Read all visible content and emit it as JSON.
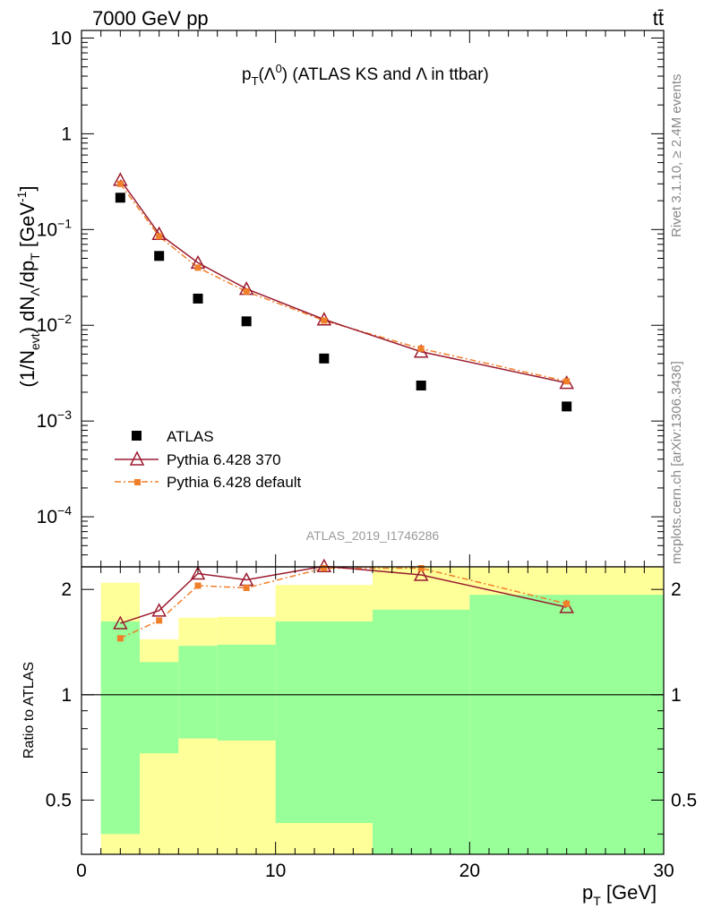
{
  "header": {
    "left": "7000 GeV pp",
    "right": "tt̄",
    "title": "p_T(Λ^0) (ATLAS KS and Λ in ttbar)",
    "watermark": "ATLAS_2019_I1746286",
    "rivet": "Rivet 3.1.10, ≥ 2.4M events",
    "mcplots": "mcplots.cern.ch [arXiv:1306.3436]"
  },
  "chart_data": [
    {
      "type": "scatter",
      "title": "p_T(Λ^0) (ATLAS KS and Λ in ttbar)",
      "xlabel": "p_T [GeV]",
      "ylabel": "(1/N_evt) dN_Λ/dp_T [GeV^-1]",
      "yscale": "log",
      "xlim": [
        0,
        30
      ],
      "ylim": [
        3e-05,
        12
      ],
      "x_ticks": [
        "0",
        "10",
        "20",
        "30"
      ],
      "y_ticks": [
        {
          "base": "10",
          "exp": "−4",
          "value": 0.0001
        },
        {
          "base": "10",
          "exp": "−3",
          "value": 0.001
        },
        {
          "base": "10",
          "exp": "−2",
          "value": 0.01
        },
        {
          "base": "10",
          "exp": "−1",
          "value": 0.1
        },
        {
          "base": "1",
          "exp": "",
          "value": 1
        },
        {
          "base": "10",
          "exp": "",
          "value": 10
        }
      ],
      "legend_position": "bottom-left",
      "series": [
        {
          "name": "ATLAS",
          "color": "#000000",
          "marker": "square",
          "x": [
            2,
            4,
            6,
            8.5,
            12.5,
            17.5,
            25
          ],
          "y": [
            0.215,
            0.053,
            0.019,
            0.011,
            0.0045,
            0.00235,
            0.00142
          ]
        },
        {
          "name": "Pythia 6.428 370",
          "color": "#9b1b30",
          "marker": "triangle-open",
          "line": "solid",
          "x": [
            2,
            4,
            6,
            8.5,
            12.5,
            17.5,
            25
          ],
          "y": [
            0.33,
            0.09,
            0.045,
            0.024,
            0.0115,
            0.0053,
            0.0025
          ]
        },
        {
          "name": "Pythia 6.428 default",
          "color": "#f07f2a",
          "marker": "square-small",
          "line": "dashdot",
          "x": [
            2,
            4,
            6,
            8.5,
            12.5,
            17.5,
            25
          ],
          "y": [
            0.3,
            0.085,
            0.04,
            0.0225,
            0.0112,
            0.0057,
            0.0026
          ]
        }
      ]
    },
    {
      "type": "line",
      "ylabel": "Ratio to ATLAS",
      "xlabel": "p_T [GeV]",
      "xlim": [
        0,
        30
      ],
      "ylim": [
        0.35,
        2.32
      ],
      "y_ticks": [
        "0.5",
        "1",
        "2"
      ],
      "x_ticks": [
        "0",
        "10",
        "20",
        "30"
      ],
      "bands": [
        {
          "x0": 1,
          "x1": 3,
          "g_lo": 0.4,
          "g_hi": 1.62,
          "y_lo": 0.35,
          "y_hi": 2.09
        },
        {
          "x0": 3,
          "x1": 5,
          "g_lo": 0.68,
          "g_hi": 1.24,
          "y_lo": 0.35,
          "y_hi": 1.44
        },
        {
          "x0": 5,
          "x1": 7,
          "g_lo": 0.75,
          "g_hi": 1.38,
          "y_lo": 0.35,
          "y_hi": 1.66
        },
        {
          "x0": 7,
          "x1": 10,
          "g_lo": 0.74,
          "g_hi": 1.39,
          "y_lo": 0.35,
          "y_hi": 1.67
        },
        {
          "x0": 10,
          "x1": 15,
          "g_lo": 0.43,
          "g_hi": 1.62,
          "y_lo": 0.35,
          "y_hi": 2.06
        },
        {
          "x0": 15,
          "x1": 20,
          "g_lo": 0.35,
          "g_hi": 1.75,
          "y_lo": 0.35,
          "y_hi": 2.32
        },
        {
          "x0": 20,
          "x1": 30,
          "g_lo": 0.35,
          "g_hi": 1.93,
          "y_lo": 0.35,
          "y_hi": 2.32
        }
      ],
      "series": [
        {
          "name": "Pythia 6.428 370",
          "color": "#9b1b30",
          "x": [
            2,
            4,
            6,
            8.5,
            12.5,
            17.5,
            25
          ],
          "y": [
            1.6,
            1.74,
            2.22,
            2.13,
            2.33,
            2.2,
            1.78
          ]
        },
        {
          "name": "Pythia 6.428 default",
          "color": "#f07f2a",
          "x": [
            2,
            4,
            6,
            8.5,
            12.5,
            17.5,
            25
          ],
          "y": [
            1.45,
            1.63,
            2.05,
            2.02,
            2.3,
            2.3,
            1.82
          ]
        }
      ]
    }
  ]
}
